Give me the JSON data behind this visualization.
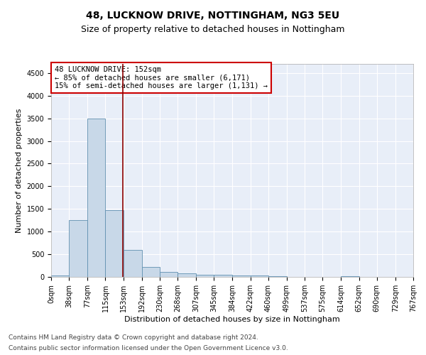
{
  "title_line1": "48, LUCKNOW DRIVE, NOTTINGHAM, NG3 5EU",
  "title_line2": "Size of property relative to detached houses in Nottingham",
  "xlabel": "Distribution of detached houses by size in Nottingham",
  "ylabel": "Number of detached properties",
  "footer_line1": "Contains HM Land Registry data © Crown copyright and database right 2024.",
  "footer_line2": "Contains public sector information licensed under the Open Government Licence v3.0.",
  "annotation_line1": "48 LUCKNOW DRIVE: 152sqm",
  "annotation_line2": "← 85% of detached houses are smaller (6,171)",
  "annotation_line3": "15% of semi-detached houses are larger (1,131) →",
  "subject_value": 152,
  "bar_edges": [
    0,
    38,
    77,
    115,
    153,
    192,
    230,
    268,
    307,
    345,
    384,
    422,
    460,
    499,
    537,
    575,
    614,
    652,
    690,
    729,
    767
  ],
  "bar_heights": [
    30,
    1250,
    3500,
    1470,
    590,
    220,
    105,
    75,
    50,
    40,
    35,
    35,
    10,
    0,
    0,
    0,
    10,
    0,
    0,
    0,
    0
  ],
  "bar_color": "#c8d8e8",
  "bar_edge_color": "#6090b0",
  "vline_color": "#8b0000",
  "vline_x": 152,
  "ylim": [
    0,
    4700
  ],
  "yticks": [
    0,
    500,
    1000,
    1500,
    2000,
    2500,
    3000,
    3500,
    4000,
    4500
  ],
  "bg_color": "#e8eef8",
  "grid_color": "#ffffff",
  "annotation_box_color": "#ffffff",
  "annotation_box_edge": "#cc0000",
  "title_fontsize": 10,
  "subtitle_fontsize": 9,
  "axis_label_fontsize": 8,
  "tick_fontsize": 7,
  "annotation_fontsize": 7.5,
  "footer_fontsize": 6.5
}
